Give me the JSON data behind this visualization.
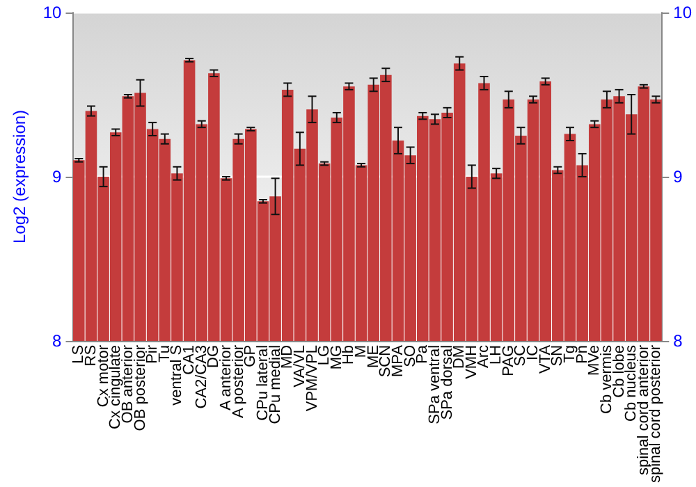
{
  "chart_data": {
    "type": "bar",
    "ylabel": "Log2 (expression)",
    "categories": [
      "LS",
      "RS",
      "Cx motor",
      "Cx cingulate",
      "OB anterior",
      "OB posterior",
      "Pir",
      "Tu",
      "ventral S",
      "CA1",
      "CA2/CA3",
      "DG",
      "A anterior",
      "A posterior",
      "GP",
      "CPu lateral",
      "CPu medial",
      "MD",
      "VA/VL",
      "VPM/VPL",
      "LG",
      "MG",
      "Hb",
      "M",
      "ME",
      "SCN",
      "MPA",
      "SO",
      "Pa",
      "SPa ventral",
      "SPa dorsal",
      "DM",
      "VMH",
      "Arc",
      "LH",
      "PAG",
      "SC",
      "IC",
      "VTA",
      "SN",
      "Tg",
      "Pn",
      "MVe",
      "Cb vermis",
      "Cb lobe",
      "Cb nucleus",
      "spinal cord anterior",
      "spinal cord posterior"
    ],
    "values": [
      9.1,
      9.4,
      9.0,
      9.27,
      9.49,
      9.51,
      9.29,
      9.23,
      9.02,
      9.71,
      9.32,
      9.63,
      8.99,
      9.23,
      9.29,
      8.85,
      8.88,
      9.53,
      9.17,
      9.41,
      9.08,
      9.36,
      9.55,
      9.07,
      9.56,
      9.62,
      9.22,
      9.13,
      9.37,
      9.35,
      9.39,
      9.69,
      9.0,
      9.57,
      9.02,
      9.47,
      9.25,
      9.47,
      9.58,
      9.04,
      9.26,
      9.07,
      9.32,
      9.47,
      9.49,
      9.38,
      9.55,
      9.47
    ],
    "errors": [
      0.01,
      0.03,
      0.06,
      0.02,
      0.01,
      0.08,
      0.04,
      0.03,
      0.04,
      0.01,
      0.02,
      0.02,
      0.01,
      0.03,
      0.01,
      0.01,
      0.11,
      0.04,
      0.1,
      0.08,
      0.01,
      0.03,
      0.02,
      0.01,
      0.04,
      0.04,
      0.08,
      0.05,
      0.02,
      0.03,
      0.03,
      0.04,
      0.07,
      0.04,
      0.03,
      0.05,
      0.05,
      0.02,
      0.02,
      0.02,
      0.04,
      0.07,
      0.02,
      0.05,
      0.04,
      0.12,
      0.01,
      0.02
    ],
    "color": "#c43c3c",
    "ylim": [
      8,
      10
    ],
    "yticks": [
      8,
      9,
      10
    ],
    "y2lim": [
      8,
      10
    ],
    "y2ticks": [
      8,
      9,
      10
    ],
    "grid": "y"
  }
}
